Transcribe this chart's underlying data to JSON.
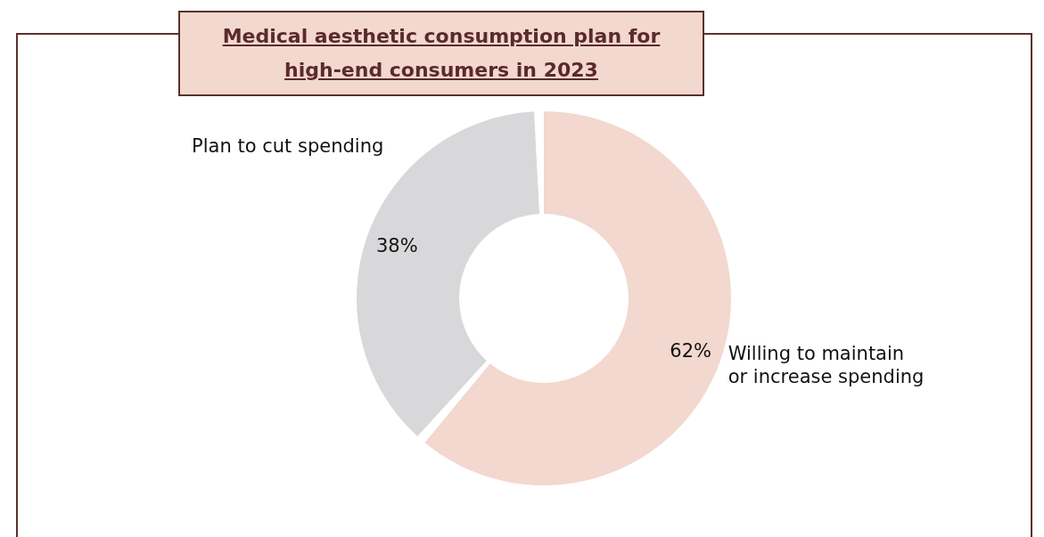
{
  "chart_data": {
    "type": "donut",
    "title": "Medical aesthetic consumption plan for high-end consumers in 2023",
    "categories": [
      "Willing to maintain or increase spending",
      "Plan to cut spending"
    ],
    "values": [
      62,
      38
    ],
    "colors": [
      "#f2d8ce",
      "#d8d8da"
    ],
    "value_labels": [
      "62%",
      "38%"
    ]
  }
}
